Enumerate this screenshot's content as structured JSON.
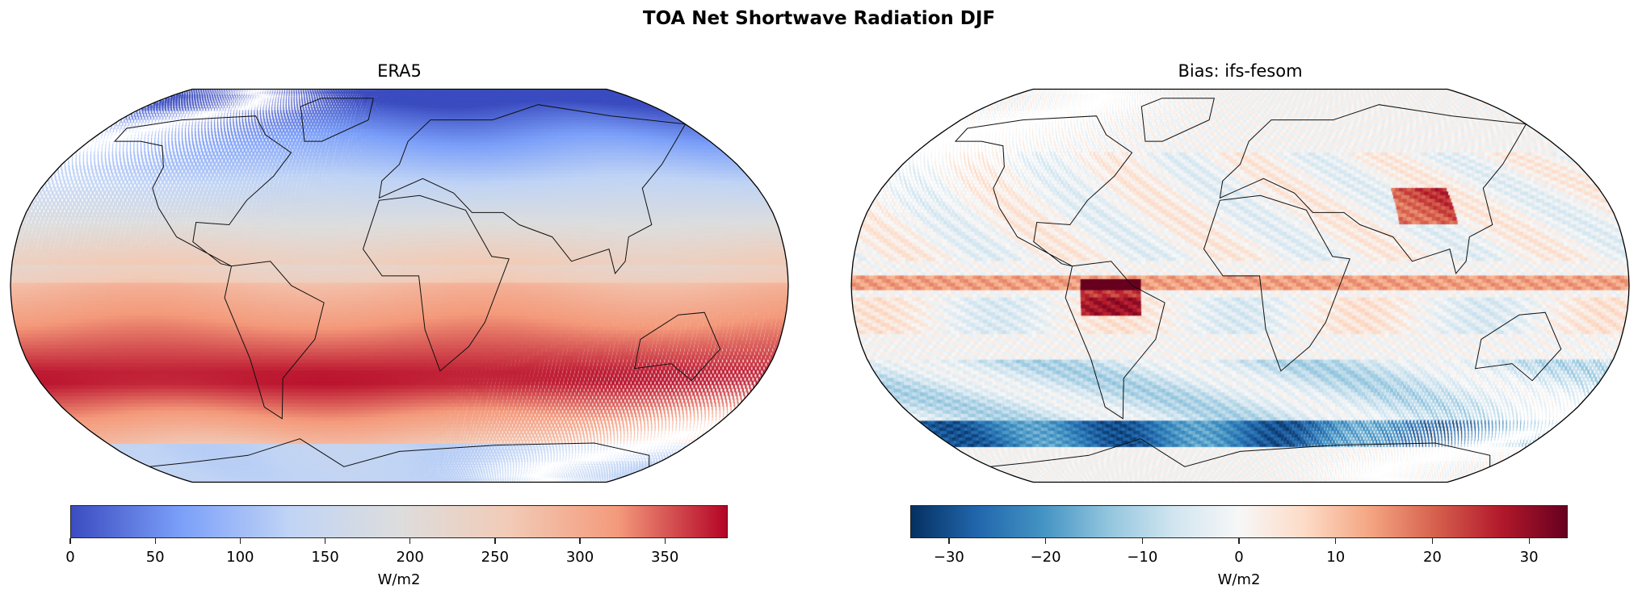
{
  "figure_title": "TOA Net Shortwave Radiation DJF",
  "chart_data": [
    {
      "type": "heatmap",
      "title": "ERA5",
      "projection": "Robinson",
      "colormap": "coolwarm",
      "colorbar": {
        "label": "W/m2",
        "range": [
          0,
          387
        ],
        "ticks": [
          "0",
          "50",
          "100",
          "150",
          "200",
          "250",
          "300",
          "350"
        ],
        "tick_values": [
          0,
          50,
          100,
          150,
          200,
          250,
          300,
          350
        ],
        "orientation": "horizontal"
      }
    },
    {
      "type": "heatmap",
      "title": "Bias: ifs-fesom",
      "projection": "Robinson",
      "colormap": "RdBu_r",
      "colorbar": {
        "label": "W/m2",
        "range": [
          -34,
          34
        ],
        "ticks": [
          "−30",
          "−20",
          "−10",
          "0",
          "10",
          "20",
          "30"
        ],
        "tick_values": [
          -30,
          -20,
          -10,
          0,
          10,
          20,
          30
        ],
        "orientation": "horizontal"
      }
    }
  ]
}
